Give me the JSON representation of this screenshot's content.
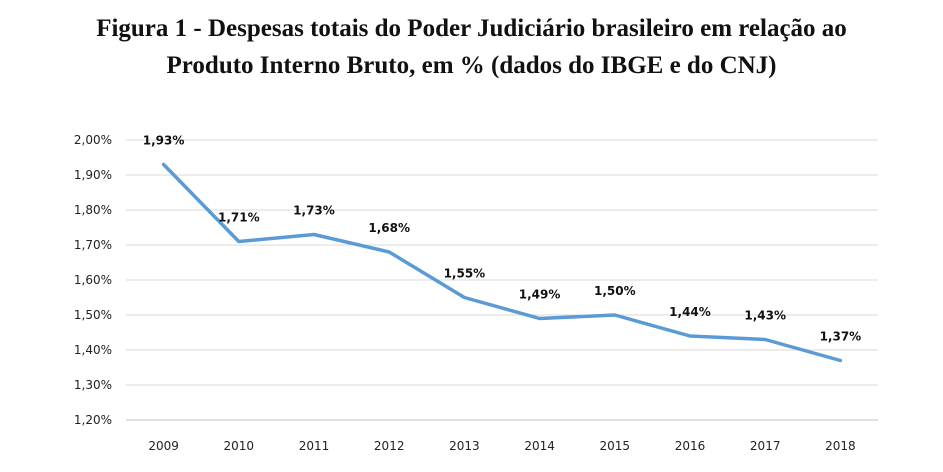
{
  "figure": {
    "title_line1": "Figura 1 - Despesas totais do Poder Judiciário brasileiro em relação ao",
    "title_line2": "Produto Interno Bruto, em % (dados do IBGE e do CNJ)"
  },
  "chart_data": {
    "type": "line",
    "title": "Figura 1 - Despesas totais do Poder Judiciário brasileiro em relação ao Produto Interno Bruto, em % (dados do IBGE e do CNJ)",
    "xlabel": "",
    "ylabel": "",
    "categories": [
      "2009",
      "2010",
      "2011",
      "2012",
      "2013",
      "2014",
      "2015",
      "2016",
      "2017",
      "2018"
    ],
    "series": [
      {
        "values": [
          1.93,
          1.71,
          1.73,
          1.68,
          1.55,
          1.49,
          1.5,
          1.44,
          1.43,
          1.37
        ],
        "data_labels": [
          "1,93%",
          "1,71%",
          "1,73%",
          "1,68%",
          "1,55%",
          "1,49%",
          "1,50%",
          "1,44%",
          "1,43%",
          "1,37%"
        ],
        "color": "#5b9bd5"
      }
    ],
    "ylim": [
      1.2,
      2.0
    ],
    "y_ticks": [
      2.0,
      1.9,
      1.8,
      1.7,
      1.6,
      1.5,
      1.4,
      1.3,
      1.2
    ],
    "y_tick_labels": [
      "2,00%",
      "1,90%",
      "1,80%",
      "1,70%",
      "1,60%",
      "1,50%",
      "1,40%",
      "1,30%",
      "1,20%"
    ],
    "grid": true,
    "legend": "none",
    "gridline_color": "#d9d9d9",
    "axis_line_color": "#bfbfbf"
  }
}
